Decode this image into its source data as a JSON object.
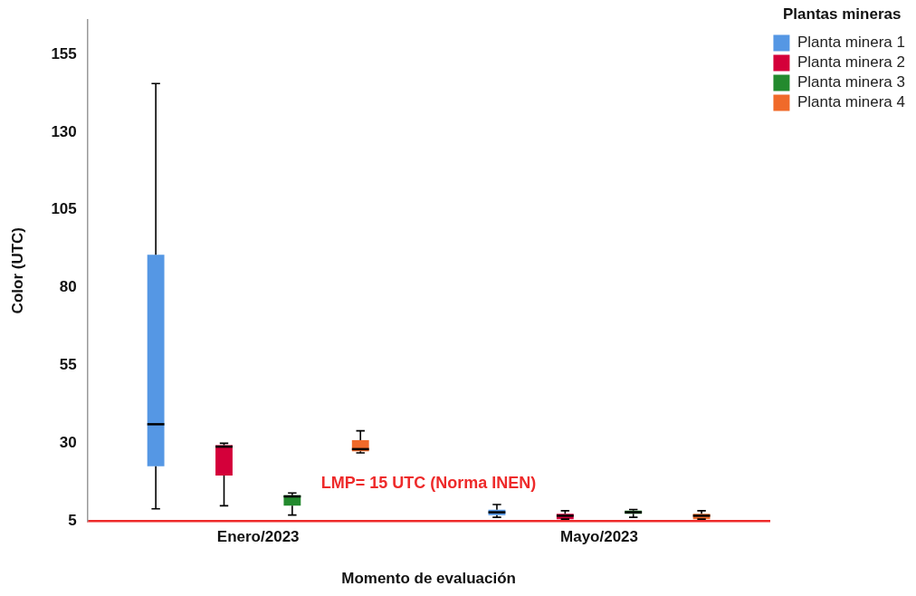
{
  "chart_data": {
    "type": "box",
    "xlabel": "Momento de evaluación",
    "ylabel": "Color (UTC)",
    "legend_title": "Plantas mineras",
    "categories": [
      "Enero/2023",
      "Mayo/2023"
    ],
    "ylim": [
      5,
      166
    ],
    "yticks": [
      5,
      30,
      55,
      80,
      105,
      130,
      155
    ],
    "grid": false,
    "legend": "top right",
    "annotations": [
      "LMP= 15 UTC (Norma INEN)"
    ],
    "series": [
      {
        "name": "Planta minera 1",
        "color": "#5597e4",
        "boxes": [
          {
            "low": 8.9,
            "q1": 22.6,
            "median": 36.1,
            "q3": 90.6,
            "high": 145.6
          },
          {
            "low": 6.2,
            "q1": 6.9,
            "median": 7.8,
            "q3": 8.6,
            "high": 10.3
          }
        ]
      },
      {
        "name": "Planta minera 2",
        "color": "#d4003a",
        "boxes": [
          {
            "low": 9.9,
            "q1": 19.6,
            "median": 28.9,
            "q3": 29.4,
            "high": 30.0
          },
          {
            "low": 5.6,
            "q1": 5.6,
            "median": 6.7,
            "q3": 7.3,
            "high": 8.3
          }
        ]
      },
      {
        "name": "Planta minera 3",
        "color": "#238a2e",
        "boxes": [
          {
            "low": 6.9,
            "q1": 9.9,
            "median": 12.9,
            "q3": 13.3,
            "high": 14.0
          },
          {
            "low": 6.2,
            "q1": 7.3,
            "median": 7.8,
            "q3": 8.3,
            "high": 8.7
          }
        ]
      },
      {
        "name": "Planta minera 4",
        "color": "#f06a2a",
        "boxes": [
          {
            "low": 26.9,
            "q1": 27.4,
            "median": 28.1,
            "q3": 31.0,
            "high": 34.0
          },
          {
            "low": 5.6,
            "q1": 5.6,
            "median": 6.7,
            "q3": 7.3,
            "high": 8.3
          }
        ]
      }
    ]
  }
}
